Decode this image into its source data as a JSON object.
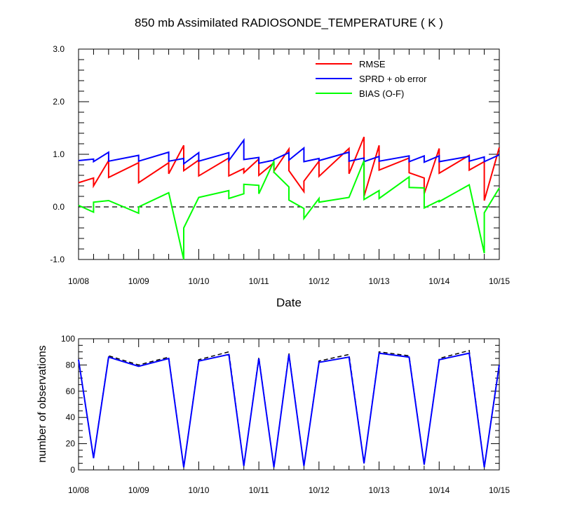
{
  "chart_data": [
    {
      "type": "line",
      "title": "850 mb Assimilated RADIOSONDE_TEMPERATURE ( K )",
      "xlabel": "Date",
      "ylabel": "",
      "x_tick_labels": [
        "10/08",
        "10/09",
        "10/10",
        "10/11",
        "10/12",
        "10/13",
        "10/14",
        "10/15"
      ],
      "y_tick_labels": [
        "3.0",
        "2.0",
        "1.0",
        "0.0",
        "-1.0"
      ],
      "ylim": [
        -1.0,
        3.0
      ],
      "xlim_days": [
        0,
        7
      ],
      "reference_line": {
        "y": 0.0,
        "style": "dashed"
      },
      "legend_position": "top-right, inside plot",
      "series": [
        {
          "name": "RMSE",
          "color": "#ff0000",
          "points": [
            [
              0,
              0.46
            ],
            [
              0.25,
              0.55
            ],
            [
              0.25,
              0.4
            ],
            [
              0.5,
              0.88
            ],
            [
              0.5,
              0.56
            ],
            [
              1,
              0.84
            ],
            [
              1,
              0.46
            ],
            [
              1.5,
              0.84
            ],
            [
              1.5,
              0.63
            ],
            [
              1.75,
              1.17
            ],
            [
              1.75,
              0.69
            ],
            [
              2,
              0.89
            ],
            [
              2,
              0.59
            ],
            [
              2.5,
              0.93
            ],
            [
              2.5,
              0.59
            ],
            [
              2.75,
              0.73
            ],
            [
              2.75,
              0.65
            ],
            [
              3,
              0.91
            ],
            [
              3,
              0.6
            ],
            [
              3.25,
              0.84
            ],
            [
              3.25,
              0.68
            ],
            [
              3.5,
              1.1
            ],
            [
              3.5,
              0.69
            ],
            [
              3.75,
              0.29
            ],
            [
              3.75,
              0.49
            ],
            [
              4,
              0.87
            ],
            [
              4,
              0.58
            ],
            [
              4.5,
              1.11
            ],
            [
              4.5,
              0.63
            ],
            [
              4.75,
              1.33
            ],
            [
              4.75,
              0.2
            ],
            [
              5,
              1.17
            ],
            [
              5,
              0.7
            ],
            [
              5.5,
              0.93
            ],
            [
              5.5,
              0.65
            ],
            [
              5.75,
              0.55
            ],
            [
              5.75,
              0.25
            ],
            [
              6,
              1.11
            ],
            [
              6,
              0.64
            ],
            [
              6.5,
              0.98
            ],
            [
              6.5,
              0.7
            ],
            [
              6.75,
              0.86
            ],
            [
              6.75,
              0.12
            ],
            [
              7,
              1.13
            ]
          ]
        },
        {
          "name": "SPRD + ob error",
          "color": "#0000ff",
          "points": [
            [
              0,
              0.88
            ],
            [
              0.25,
              0.91
            ],
            [
              0.25,
              0.86
            ],
            [
              0.5,
              1.04
            ],
            [
              0.5,
              0.87
            ],
            [
              1,
              0.98
            ],
            [
              1,
              0.87
            ],
            [
              1.5,
              1.04
            ],
            [
              1.5,
              0.87
            ],
            [
              1.75,
              0.92
            ],
            [
              1.75,
              0.82
            ],
            [
              2,
              1.03
            ],
            [
              2,
              0.87
            ],
            [
              2.5,
              1.03
            ],
            [
              2.5,
              0.88
            ],
            [
              2.75,
              1.27
            ],
            [
              2.75,
              0.9
            ],
            [
              3,
              0.94
            ],
            [
              3,
              0.83
            ],
            [
              3.25,
              0.89
            ],
            [
              3.25,
              0.9
            ],
            [
              3.5,
              1.03
            ],
            [
              3.5,
              0.89
            ],
            [
              3.75,
              1.12
            ],
            [
              3.75,
              0.86
            ],
            [
              4,
              0.92
            ],
            [
              4,
              0.88
            ],
            [
              4.5,
              1.04
            ],
            [
              4.5,
              0.87
            ],
            [
              4.75,
              0.93
            ],
            [
              4.75,
              0.86
            ],
            [
              5,
              0.96
            ],
            [
              5,
              0.87
            ],
            [
              5.5,
              0.97
            ],
            [
              5.5,
              0.86
            ],
            [
              5.75,
              0.97
            ],
            [
              5.75,
              0.85
            ],
            [
              6,
              0.97
            ],
            [
              6,
              0.86
            ],
            [
              6.5,
              0.96
            ],
            [
              6.5,
              0.87
            ],
            [
              6.75,
              0.95
            ],
            [
              6.75,
              0.86
            ],
            [
              7,
              0.99
            ]
          ]
        },
        {
          "name": "BIAS (O-F)",
          "color": "#00ff00",
          "points": [
            [
              0,
              0.03
            ],
            [
              0.25,
              -0.1
            ],
            [
              0.25,
              0.09
            ],
            [
              0.5,
              0.12
            ],
            [
              1,
              -0.12
            ],
            [
              1,
              0.0
            ],
            [
              1.5,
              0.27
            ],
            [
              1.75,
              -1.0
            ],
            [
              1.75,
              -0.4
            ],
            [
              2,
              0.18
            ],
            [
              2.5,
              0.31
            ],
            [
              2.5,
              0.16
            ],
            [
              2.75,
              0.25
            ],
            [
              2.75,
              0.43
            ],
            [
              3,
              0.41
            ],
            [
              3,
              0.25
            ],
            [
              3.25,
              0.87
            ],
            [
              3.25,
              0.66
            ],
            [
              3.5,
              0.38
            ],
            [
              3.5,
              0.13
            ],
            [
              3.75,
              -0.03
            ],
            [
              3.75,
              -0.22
            ],
            [
              4,
              0.16
            ],
            [
              4,
              0.09
            ],
            [
              4.5,
              0.18
            ],
            [
              4.75,
              0.88
            ],
            [
              4.75,
              0.14
            ],
            [
              5,
              0.31
            ],
            [
              5,
              0.16
            ],
            [
              5.5,
              0.57
            ],
            [
              5.5,
              0.37
            ],
            [
              5.75,
              0.36
            ],
            [
              5.75,
              -0.02
            ],
            [
              6,
              0.12
            ],
            [
              6,
              0.1
            ],
            [
              6.5,
              0.42
            ],
            [
              6.75,
              -0.88
            ],
            [
              6.75,
              -0.11
            ],
            [
              7,
              0.36
            ]
          ]
        }
      ]
    },
    {
      "type": "line",
      "title": "",
      "xlabel": "",
      "ylabel": "number of observations",
      "x_tick_labels": [
        "10/08",
        "10/09",
        "10/10",
        "10/11",
        "10/12",
        "10/13",
        "10/14",
        "10/15"
      ],
      "y_tick_labels": [
        "100",
        "80",
        "60",
        "40",
        "20",
        "0"
      ],
      "ylim": [
        0,
        100
      ],
      "xlim_days": [
        0,
        7
      ],
      "series": [
        {
          "name": "",
          "color": "#000000",
          "style": "dashed",
          "points": [
            [
              0,
              84
            ],
            [
              0.25,
              9
            ],
            [
              0.5,
              87
            ],
            [
              1,
              80
            ],
            [
              1.5,
              86
            ],
            [
              1.75,
              2
            ],
            [
              2,
              84
            ],
            [
              2.5,
              90
            ],
            [
              2.75,
              3
            ],
            [
              3,
              86
            ],
            [
              3.25,
              2
            ],
            [
              3.5,
              89
            ],
            [
              3.75,
              3
            ],
            [
              4,
              83
            ],
            [
              4.5,
              88
            ],
            [
              4.75,
              5
            ],
            [
              5,
              90
            ],
            [
              5.5,
              87
            ],
            [
              5.75,
              4
            ],
            [
              6,
              85
            ],
            [
              6.5,
              91
            ],
            [
              6.75,
              2
            ],
            [
              7,
              81
            ]
          ]
        },
        {
          "name": "",
          "color": "#0000ff",
          "style": "solid",
          "points": [
            [
              0,
              84
            ],
            [
              0.25,
              9
            ],
            [
              0.5,
              86
            ],
            [
              1,
              79
            ],
            [
              1.5,
              85
            ],
            [
              1.75,
              2
            ],
            [
              2,
              83
            ],
            [
              2.5,
              88
            ],
            [
              2.75,
              3
            ],
            [
              3,
              85
            ],
            [
              3.25,
              2
            ],
            [
              3.5,
              88
            ],
            [
              3.75,
              3
            ],
            [
              4,
              82
            ],
            [
              4.5,
              86
            ],
            [
              4.75,
              5
            ],
            [
              5,
              89
            ],
            [
              5.5,
              86
            ],
            [
              5.75,
              4
            ],
            [
              6,
              84
            ],
            [
              6.5,
              89
            ],
            [
              6.75,
              2
            ],
            [
              7,
              80
            ]
          ]
        }
      ]
    }
  ]
}
